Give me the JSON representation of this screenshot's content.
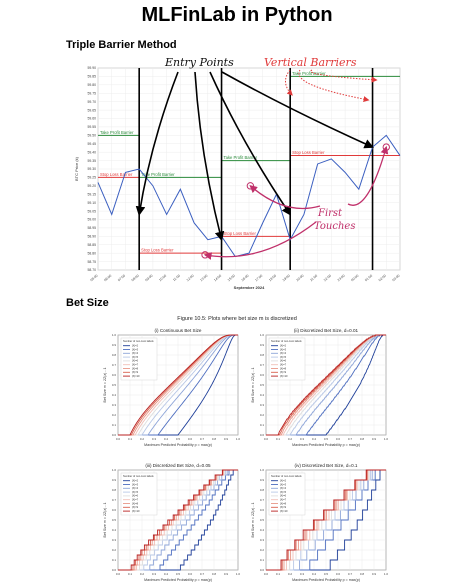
{
  "page": {
    "title": "MLFinLab in Python"
  },
  "sections": {
    "triple_barrier": "Triple Barrier Method",
    "bet_size": "Bet Size"
  },
  "annotations": {
    "entry_points": "Entry Points",
    "vertical_barriers": "Vertical Barriers",
    "first_touches_1": "First",
    "first_touches_2": "Touches"
  },
  "colors": {
    "price": "#3b5fc0",
    "take_profit": "#2a8a3a",
    "stop_loss": "#e03a3a",
    "vertical": "#000000",
    "annotation": "#c0306a",
    "arrow": "#000000"
  },
  "chart_data": [
    {
      "type": "line",
      "title": "Triple Barrier Method",
      "xlabel": "September 2024",
      "ylabel": "BTC Price (k)",
      "x": [
        "05:00",
        "06:00",
        "07:00",
        "08:00",
        "09:00",
        "10:00",
        "11:00",
        "12:00",
        "13:00",
        "14:00",
        "15:00",
        "16:00",
        "17:00",
        "18:00",
        "19:00",
        "20:00",
        "21:00",
        "22:00",
        "23:00",
        "00:00",
        "01:00",
        "02:00",
        "03:00"
      ],
      "ylim": [
        58.7,
        59.9
      ],
      "yticks": [
        "59.90",
        "59.85",
        "59.80",
        "59.75",
        "59.70",
        "59.65",
        "59.60",
        "59.55",
        "59.50",
        "59.45",
        "59.40",
        "59.35",
        "59.30",
        "59.25",
        "59.20",
        "59.15",
        "59.10",
        "59.05",
        "59.00",
        "58.95",
        "58.90",
        "58.85",
        "58.80",
        "58.75",
        "58.70"
      ],
      "grid": true,
      "price_series": [
        59.22,
        59.03,
        59.28,
        59.3,
        59.2,
        59.03,
        59.18,
        58.98,
        58.88,
        58.9,
        58.78,
        58.8,
        58.98,
        59.15,
        58.88,
        59.03,
        59.33,
        59.36,
        59.28,
        59.18,
        59.43,
        59.5,
        59.38
      ],
      "vertical_barriers_x": [
        3,
        9,
        14,
        20
      ],
      "take_profit_barriers": [
        {
          "label": "Take Profit Barrier",
          "y": 59.5,
          "x0": 0,
          "x1": 3
        },
        {
          "label": "Take Profit Barrier",
          "y": 59.25,
          "x0": 3,
          "x1": 9
        },
        {
          "label": "Take Profit Barrier",
          "y": 59.35,
          "x0": 9,
          "x1": 14
        },
        {
          "label": "Take Profit Barrier",
          "y": 59.85,
          "x0": 14,
          "x1": 22
        }
      ],
      "stop_loss_barriers": [
        {
          "label": "Stop Loss Barrier",
          "y": 59.25,
          "x0": 0,
          "x1": 3
        },
        {
          "label": "Stop Loss Barrier",
          "y": 58.8,
          "x0": 3,
          "x1": 9
        },
        {
          "label": "Stop Loss Barrier",
          "y": 58.9,
          "x0": 9,
          "x1": 14
        },
        {
          "label": "Stop Loss Barrier",
          "y": 59.38,
          "x0": 14,
          "x1": 22
        }
      ],
      "first_touches": [
        {
          "x": 7.8,
          "y": 58.79
        },
        {
          "x": 11.1,
          "y": 59.2
        },
        {
          "x": 21,
          "y": 59.43
        }
      ]
    },
    {
      "type": "line",
      "figure_title": "Figure 10.5: Plots where bet size m is discretized",
      "title": "(i) Continuous Bet Size",
      "xlabel": "Maximum Predicted Probability p = max(p)",
      "ylabel": "Bet Size m = 2Z(z) - 1",
      "legend_title": "Number of non-zero labels",
      "legend": [
        "|X|=2",
        "|X|=3",
        "|X|=4",
        "|X|=5",
        "|X|=6",
        "|X|=7",
        "|X|=8",
        "|X|=9",
        "|X|=10"
      ],
      "xlim": [
        0.0,
        1.0
      ],
      "ylim": [
        0.0,
        1.0
      ],
      "xticks": [
        "0.0",
        "0.1",
        "0.2",
        "0.3",
        "0.4",
        "0.5",
        "0.6",
        "0.7",
        "0.8",
        "0.9",
        "1.0"
      ],
      "yticks": [
        "0.0",
        "0.1",
        "0.2",
        "0.3",
        "0.4",
        "0.5",
        "0.6",
        "0.7",
        "0.8",
        "0.9",
        "1.0"
      ],
      "step": 0
    },
    {
      "type": "line",
      "title": "(ii) Discretized Bet Size, d=0.01",
      "xlabel": "Maximum Predicted Probability p = max(p)",
      "ylabel": "Bet Size m = 2Z(z) - 1",
      "legend_title": "Number of non-zero labels",
      "legend": [
        "|X|=2",
        "|X|=3",
        "|X|=4",
        "|X|=5",
        "|X|=6",
        "|X|=7",
        "|X|=8",
        "|X|=9",
        "|X|=10"
      ],
      "xlim": [
        0.0,
        1.0
      ],
      "ylim": [
        0.0,
        1.0
      ],
      "xticks": [
        "0.0",
        "0.1",
        "0.2",
        "0.3",
        "0.4",
        "0.5",
        "0.6",
        "0.7",
        "0.8",
        "0.9",
        "1.0"
      ],
      "yticks": [
        "0.0",
        "0.1",
        "0.2",
        "0.3",
        "0.4",
        "0.5",
        "0.6",
        "0.7",
        "0.8",
        "0.9",
        "1.0"
      ],
      "step": 0.01
    },
    {
      "type": "line",
      "title": "(iii) Discretized Bet Size, d=0.05",
      "xlabel": "Maximum Predicted Probability p = max(p)",
      "ylabel": "Bet Size m = 2Z(z) - 1",
      "legend_title": "Number of non-zero labels",
      "legend": [
        "|X|=2",
        "|X|=3",
        "|X|=4",
        "|X|=5",
        "|X|=6",
        "|X|=7",
        "|X|=8",
        "|X|=9",
        "|X|=10"
      ],
      "xlim": [
        0.0,
        1.0
      ],
      "ylim": [
        0.0,
        1.0
      ],
      "xticks": [
        "0.0",
        "0.1",
        "0.2",
        "0.3",
        "0.4",
        "0.5",
        "0.6",
        "0.7",
        "0.8",
        "0.9",
        "1.0"
      ],
      "yticks": [
        "0.0",
        "0.1",
        "0.2",
        "0.3",
        "0.4",
        "0.5",
        "0.6",
        "0.7",
        "0.8",
        "0.9",
        "1.0"
      ],
      "step": 0.05
    },
    {
      "type": "line",
      "title": "(iv) Discretized Bet Size, d=0.1",
      "xlabel": "Maximum Predicted Probability p = max(p)",
      "ylabel": "Bet Size m = 2Z(z) - 1",
      "legend_title": "Number of non-zero labels",
      "legend": [
        "|X|=2",
        "|X|=3",
        "|X|=4",
        "|X|=5",
        "|X|=6",
        "|X|=7",
        "|X|=8",
        "|X|=9",
        "|X|=10"
      ],
      "xlim": [
        0.0,
        1.0
      ],
      "ylim": [
        0.0,
        1.0
      ],
      "xticks": [
        "0.0",
        "0.1",
        "0.2",
        "0.3",
        "0.4",
        "0.5",
        "0.6",
        "0.7",
        "0.8",
        "0.9",
        "1.0"
      ],
      "yticks": [
        "0.0",
        "0.1",
        "0.2",
        "0.3",
        "0.4",
        "0.5",
        "0.6",
        "0.7",
        "0.8",
        "0.9",
        "1.0"
      ],
      "step": 0.1
    }
  ]
}
